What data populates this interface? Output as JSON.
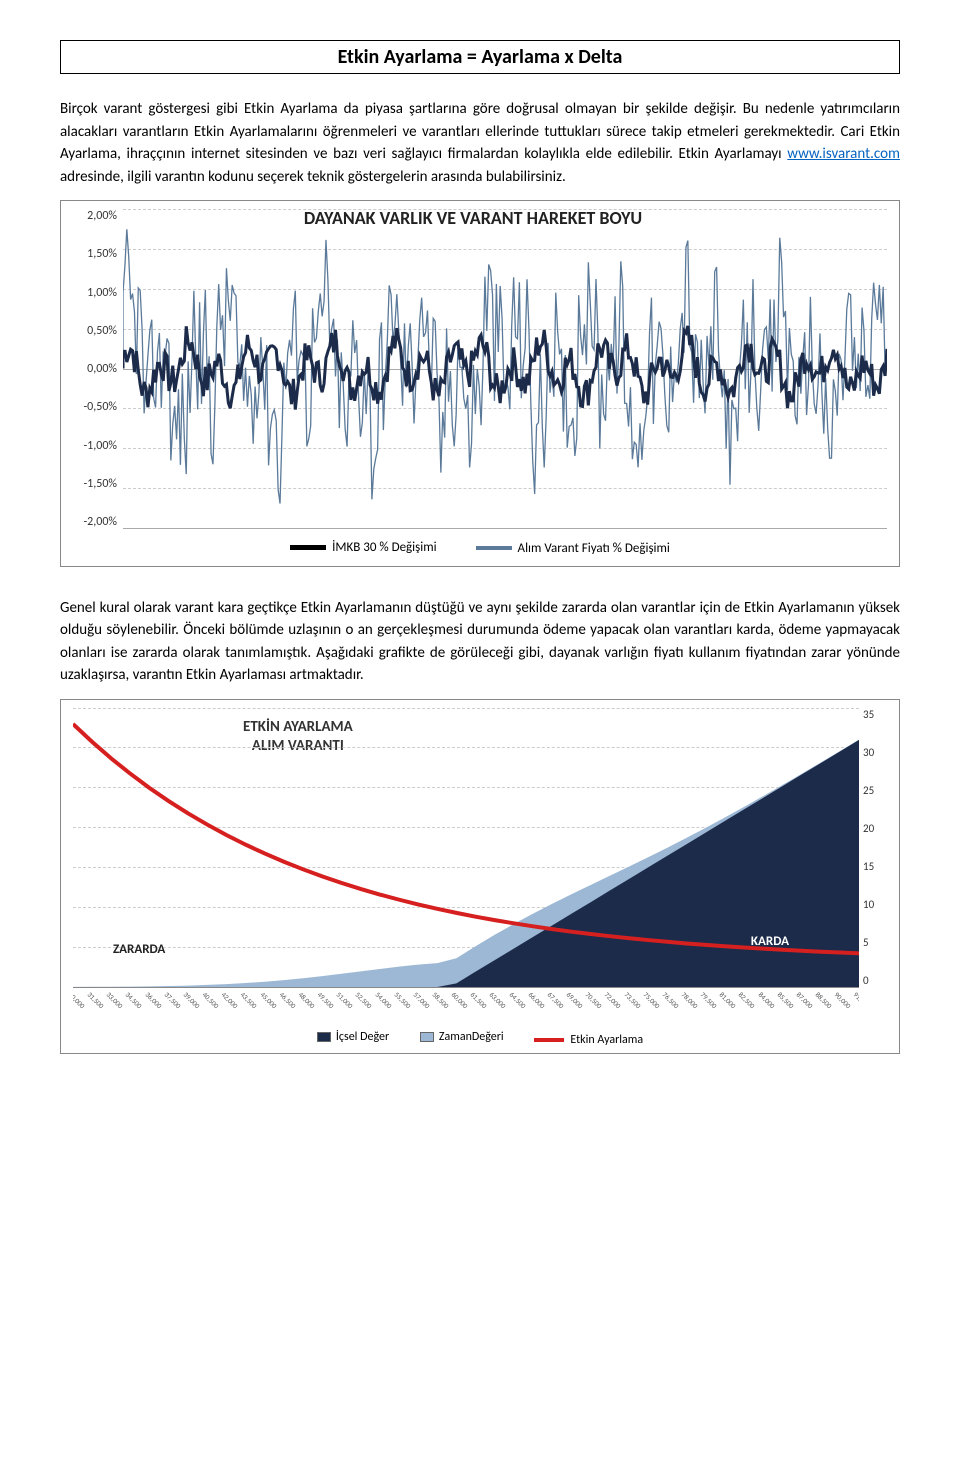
{
  "formula_title": "Etkin Ayarlama = Ayarlama x Delta",
  "para1": "Birçok varant göstergesi gibi Etkin Ayarlama da piyasa şartlarına göre doğrusal olmayan bir şekilde değişir. Bu nedenle yatırımcıların alacakları varantların Etkin Ayarlamalarını öğrenmeleri ve varantları ellerinde tuttukları sürece takip etmeleri gerekmektedir. Cari Etkin Ayarlama, ihraççının internet sitesinden ve bazı veri sağlayıcı firmalardan kolaylıkla elde edilebilir. Etkin Ayarlamayı ",
  "link_text": "www.isvarant.com",
  "para1b": " adresinde, ilgili varantın kodunu seçerek teknik göstergelerin arasında bulabilirsiniz.",
  "chart1": {
    "title": "DAYANAK VARLIK VE VARANT HAREKET BOYU",
    "yticks": [
      "2,00%",
      "1,50%",
      "1,00%",
      "0,50%",
      "0,00%",
      "-0,50%",
      "-1,00%",
      "-1,50%",
      "-2,00%"
    ],
    "series_light": {
      "color": "#5b7a9a",
      "label": "Alım Varant Fiyatı % Değişimi"
    },
    "series_dark": {
      "color": "#1c2b4a",
      "label": "İMKB 30 % Değişimi"
    },
    "legend_dark_color": "#000000",
    "legend_light_color": "#5b7a9a"
  },
  "para2": "Genel kural olarak varant kara geçtikçe Etkin Ayarlamanın düştüğü ve aynı şekilde zararda olan varantlar için de Etkin Ayarlamanın yüksek olduğu söylenebilir. Önceki bölümde uzlaşının o an gerçekleşmesi durumunda ödeme yapacak olan varantları karda, ödeme yapmayacak olanları ise zararda olarak tanımlamıştık. Aşağıdaki grafikte de görüleceği gibi, dayanak varlığın fiyatı kullanım fiyatından zarar yönünde uzaklaşırsa, varantın Etkin Ayarlaması artmaktadır.",
  "chart2": {
    "title_line1": "ETKİN AYARLAMA",
    "title_line2": "ALIM VARANTI",
    "yticks": [
      "35",
      "30",
      "25",
      "20",
      "15",
      "10",
      "5",
      "0"
    ],
    "xticks": [
      "30,000",
      "31,500",
      "33,000",
      "34,500",
      "36,000",
      "37,500",
      "39,000",
      "40,500",
      "42,000",
      "43,500",
      "45,000",
      "46,500",
      "48,000",
      "49,500",
      "51,000",
      "52,500",
      "54,000",
      "55,500",
      "57,000",
      "58,500",
      "60,000",
      "61,500",
      "63,000",
      "64,500",
      "66,000",
      "67,500",
      "69,000",
      "70,500",
      "72,000",
      "73,500",
      "75,000",
      "76,500",
      "78,000",
      "79,500",
      "81,000",
      "82,500",
      "84,000",
      "85,500",
      "87,000",
      "88,500",
      "90,000",
      "91,500"
    ],
    "zararda_label": "ZARARDA",
    "karda_label": "KARDA",
    "intrinsic": {
      "label": "İçsel Değer",
      "color": "#1c2b4a"
    },
    "time_value": {
      "label": "ZamanDeğeri",
      "color": "#9db8d4"
    },
    "etkin": {
      "label": "Etkin Ayarlama",
      "color": "#d62020",
      "width": 4
    }
  }
}
